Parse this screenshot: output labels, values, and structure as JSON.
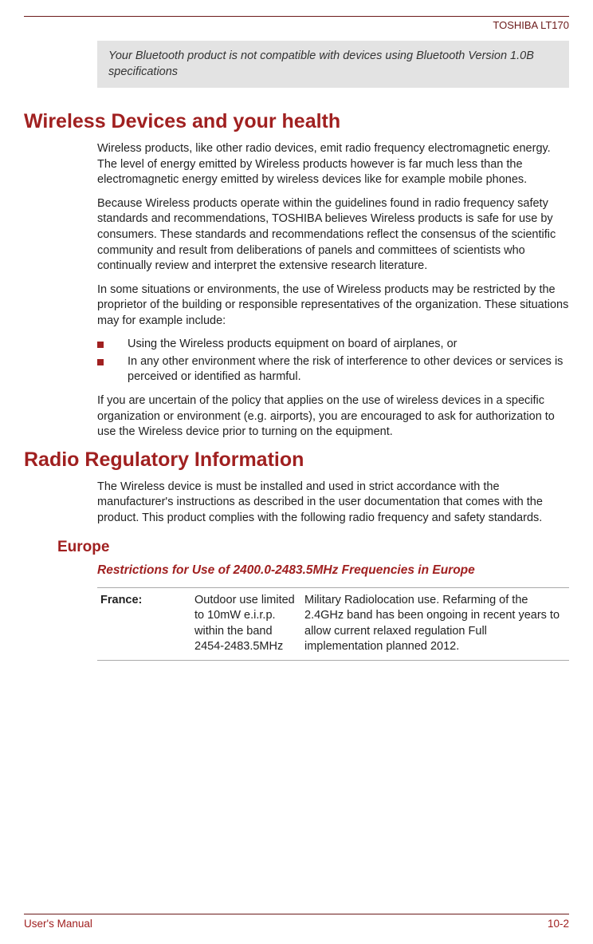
{
  "header": {
    "product": "TOSHIBA LT170"
  },
  "note": {
    "text": "Your Bluetooth product is not compatible with devices using Bluetooth Version 1.0B specifications"
  },
  "section1": {
    "title": "Wireless Devices and your health",
    "p1": "Wireless products, like other radio devices, emit radio frequency electromagnetic energy. The level of energy emitted by Wireless products however is far much less than the electromagnetic energy emitted by wireless devices like for example mobile phones.",
    "p2": "Because Wireless products operate within the guidelines found in radio frequency safety standards and recommendations, TOSHIBA believes Wireless products is safe for use by consumers. These standards and recommendations reflect the consensus of the scientific community and result from deliberations of panels and committees of scientists who continually review and interpret the extensive research literature.",
    "p3": "In some situations or environments, the use of Wireless products may be restricted by the proprietor of the building or responsible representatives of the organization. These situations may for example include:",
    "bullets": [
      "Using the Wireless products equipment on board of airplanes, or",
      "In any other environment where the risk of interference to other devices or services is perceived or identified as harmful."
    ],
    "p4": "If you are uncertain of the policy that applies on the use of wireless devices in a specific organization or environment (e.g. airports), you are encouraged to ask for authorization to use the Wireless device prior to turning on the equipment."
  },
  "section2": {
    "title": "Radio Regulatory Information",
    "p1": "The Wireless device is must be installed and used in strict accordance with the manufacturer's instructions as described in the user documentation that comes with the product. This product complies with the following radio frequency and safety standards.",
    "sub1": {
      "title": "Europe",
      "subsub": {
        "title": "Restrictions for Use of 2400.0-2483.5MHz Frequencies in Europe",
        "rows": [
          {
            "country": "France:",
            "col2": "Outdoor use limited to 10mW e.i.r.p. within the band 2454-2483.5MHz",
            "col3": "Military Radiolocation use. Refarming of the 2.4GHz band has been ongoing in recent years to allow current relaxed regulation Full implementation planned 2012."
          }
        ]
      }
    }
  },
  "footer": {
    "left": "User's Manual",
    "right": "10-2"
  },
  "colors": {
    "heading": "#a02020",
    "rule": "#6b1a1a",
    "notebg": "#e3e3e3",
    "text": "#222222"
  }
}
